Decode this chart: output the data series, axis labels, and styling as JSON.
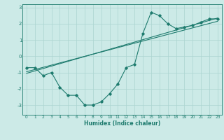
{
  "xlabel": "Humidex (Indice chaleur)",
  "background_color": "#cceae7",
  "grid_color": "#aad4d0",
  "line_color": "#1e7b6e",
  "xlim": [
    -0.5,
    23.5
  ],
  "ylim": [
    -3.6,
    3.2
  ],
  "xticks": [
    0,
    1,
    2,
    3,
    4,
    5,
    6,
    7,
    8,
    9,
    10,
    11,
    12,
    13,
    14,
    15,
    16,
    17,
    18,
    19,
    20,
    21,
    22,
    23
  ],
  "yticks": [
    -3,
    -2,
    -1,
    0,
    1,
    2,
    3
  ],
  "curve1_x": [
    0,
    1,
    2,
    3,
    4,
    5,
    6,
    7,
    8,
    9,
    10,
    11,
    12,
    13,
    14,
    15,
    16,
    17,
    18,
    19,
    20,
    21,
    22,
    23
  ],
  "curve1_y": [
    -0.7,
    -0.7,
    -1.2,
    -1.0,
    -1.9,
    -2.4,
    -2.4,
    -3.0,
    -3.0,
    -2.8,
    -2.3,
    -1.7,
    -0.7,
    -0.5,
    1.4,
    2.7,
    2.5,
    2.0,
    1.7,
    1.8,
    1.9,
    2.1,
    2.3,
    2.3
  ],
  "line1_x": [
    0,
    23
  ],
  "line1_y": [
    -1.05,
    2.35
  ],
  "line2_x": [
    0,
    23
  ],
  "line2_y": [
    -0.95,
    2.15
  ]
}
